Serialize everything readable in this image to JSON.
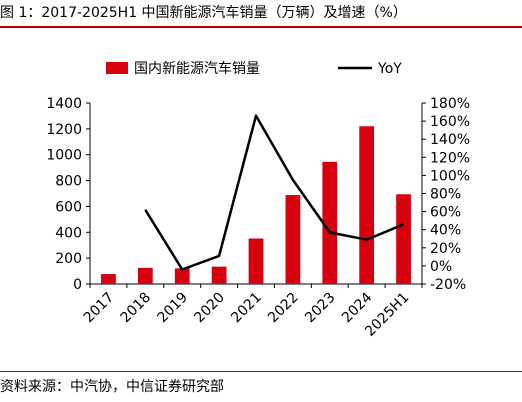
{
  "figure": {
    "title": "图 1：2017-2025H1 中国新能源汽车销量（万辆）及增速（%）",
    "source": "资料来源：中汽协，中信证券研究部"
  },
  "colors": {
    "bar": "#d7000f",
    "line": "#000000",
    "rule": "#c00000"
  },
  "chart_data": {
    "type": "bar",
    "categories": [
      "2017",
      "2018",
      "2019",
      "2020",
      "2021",
      "2022",
      "2023",
      "2024",
      "2025H1"
    ],
    "series": [
      {
        "name": "国内新能源汽车销量",
        "type": "bar",
        "axis": "left",
        "values": [
          77,
          125,
          121,
          134,
          352,
          688,
          945,
          1220,
          694
        ]
      },
      {
        "name": "YoY",
        "type": "line",
        "axis": "right",
        "values": [
          null,
          62,
          -4,
          11,
          166,
          95,
          37,
          29,
          46
        ]
      }
    ],
    "y_left": {
      "min": 0,
      "max": 1400,
      "ticks": [
        0,
        200,
        400,
        600,
        800,
        1000,
        1200,
        1400
      ]
    },
    "y_right": {
      "min": -20,
      "max": 180,
      "ticks": [
        "-20%",
        "0%",
        "20%",
        "40%",
        "60%",
        "80%",
        "100%",
        "120%",
        "140%",
        "160%",
        "180%"
      ]
    },
    "legend_position": "top-center",
    "grid": false
  }
}
